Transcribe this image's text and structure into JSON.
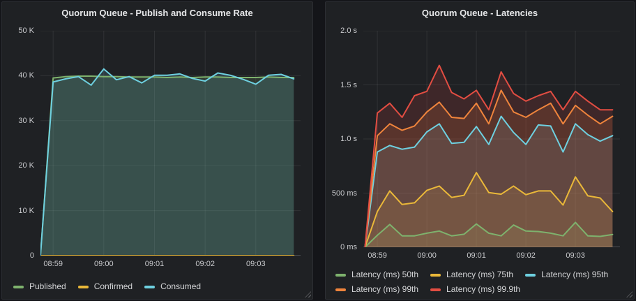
{
  "chart_data": [
    {
      "type": "area",
      "title": "Quorum Queue - Publish and Consume Rate",
      "legend_position": "bottom",
      "grid": true,
      "fill_opacity": 0.16,
      "x_tick_labels": [
        "08:59",
        "09:00",
        "09:01",
        "09:02",
        "09:03"
      ],
      "x_ticks_s": [
        0,
        60,
        120,
        180,
        240
      ],
      "x_range_s": [
        -15,
        293
      ],
      "x_points_s": [
        -15,
        0,
        15,
        30,
        45,
        60,
        75,
        90,
        105,
        120,
        135,
        150,
        165,
        180,
        195,
        210,
        225,
        240,
        255,
        270,
        285
      ],
      "y_range": [
        0,
        50000
      ],
      "y_ticks": [
        {
          "v": 0,
          "label": "0"
        },
        {
          "v": 10000,
          "label": "10 K"
        },
        {
          "v": 20000,
          "label": "20 K"
        },
        {
          "v": 30000,
          "label": "30 K"
        },
        {
          "v": 40000,
          "label": "40 K"
        },
        {
          "v": 50000,
          "label": "50 K"
        }
      ],
      "series": [
        {
          "name": "Published",
          "color": "#7EB26D",
          "values": [
            0,
            39500,
            39800,
            39900,
            39900,
            39800,
            39800,
            39700,
            39700,
            39700,
            39600,
            39700,
            39600,
            39700,
            39700,
            39600,
            39600,
            39600,
            39700,
            39600,
            39600
          ]
        },
        {
          "name": "Confirmed",
          "color": "#EAB839",
          "values": [
            0,
            0,
            0,
            0,
            0,
            0,
            0,
            0,
            0,
            0,
            0,
            0,
            0,
            0,
            0,
            0,
            0,
            0,
            0,
            0,
            0
          ]
        },
        {
          "name": "Consumed",
          "color": "#6ED0E0",
          "values": [
            0,
            38600,
            39300,
            39800,
            37900,
            41500,
            39100,
            39800,
            38400,
            40100,
            40100,
            40400,
            39400,
            38800,
            40600,
            40100,
            39200,
            38100,
            40100,
            40300,
            39300
          ]
        }
      ]
    },
    {
      "type": "area",
      "title": "Quorum Queue - Latencies",
      "legend_position": "bottom",
      "grid": true,
      "fill_opacity": 0.16,
      "x_tick_labels": [
        "08:59",
        "09:00",
        "09:01",
        "09:02",
        "09:03"
      ],
      "x_ticks_s": [
        0,
        60,
        120,
        180,
        240
      ],
      "x_range_s": [
        -17,
        294
      ],
      "x_points_s": [
        -15,
        0,
        15,
        30,
        45,
        60,
        75,
        90,
        105,
        120,
        135,
        150,
        165,
        180,
        195,
        210,
        225,
        240,
        255,
        270,
        285
      ],
      "y_range": [
        0,
        2000
      ],
      "y_ticks": [
        {
          "v": 0,
          "label": "0 ms"
        },
        {
          "v": 500,
          "label": "500 ms"
        },
        {
          "v": 1000,
          "label": "1.0 s"
        },
        {
          "v": 1500,
          "label": "1.5 s"
        },
        {
          "v": 2000,
          "label": "2.0 s"
        }
      ],
      "series": [
        {
          "name": "Latency (ms) 50th",
          "color": "#7EB26D",
          "values": [
            0,
            110,
            210,
            105,
            105,
            130,
            150,
            105,
            120,
            215,
            130,
            105,
            205,
            150,
            145,
            130,
            105,
            230,
            105,
            100,
            118
          ]
        },
        {
          "name": "Latency (ms) 75th",
          "color": "#EAB839",
          "values": [
            0,
            330,
            520,
            395,
            410,
            525,
            565,
            460,
            480,
            690,
            505,
            490,
            565,
            485,
            520,
            520,
            390,
            650,
            475,
            455,
            330
          ]
        },
        {
          "name": "Latency (ms) 95th",
          "color": "#6ED0E0",
          "values": [
            0,
            880,
            940,
            905,
            925,
            1065,
            1140,
            960,
            970,
            1115,
            950,
            1210,
            1060,
            950,
            1130,
            1120,
            880,
            1140,
            1040,
            980,
            1030
          ]
        },
        {
          "name": "Latency (ms) 99th",
          "color": "#EF843C",
          "values": [
            0,
            1030,
            1140,
            1080,
            1120,
            1250,
            1340,
            1200,
            1190,
            1330,
            1140,
            1450,
            1250,
            1200,
            1270,
            1330,
            1140,
            1310,
            1220,
            1140,
            1210
          ]
        },
        {
          "name": "Latency (ms) 99.9th",
          "color": "#E24D42",
          "values": [
            0,
            1240,
            1330,
            1200,
            1400,
            1440,
            1680,
            1430,
            1370,
            1450,
            1270,
            1620,
            1420,
            1350,
            1400,
            1440,
            1270,
            1440,
            1350,
            1270,
            1270
          ]
        }
      ]
    }
  ]
}
